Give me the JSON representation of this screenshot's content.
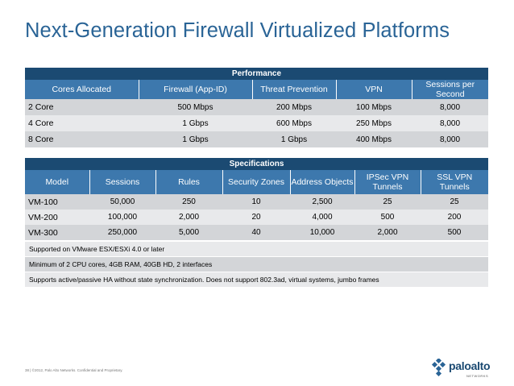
{
  "slide": {
    "title": "Next-Generation Firewall Virtualized Platforms",
    "footer": "38 | ©2012, Palo Alto Networks. Confidential and Proprietary.",
    "logo": {
      "text": "paloalto",
      "sub": "NETWORKS"
    }
  },
  "performance": {
    "heading": "Performance",
    "columns": [
      "Cores Allocated",
      "Firewall (App-ID)",
      "Threat Prevention",
      "VPN",
      "Sessions per Second"
    ],
    "rows": [
      [
        "2 Core",
        "500 Mbps",
        "200 Mbps",
        "100 Mbps",
        "8,000"
      ],
      [
        "4 Core",
        "1 Gbps",
        "600 Mbps",
        "250 Mbps",
        "8,000"
      ],
      [
        "8 Core",
        "1 Gbps",
        "1 Gbps",
        "400 Mbps",
        "8,000"
      ]
    ]
  },
  "specifications": {
    "heading": "Specifications",
    "columns": [
      "Model",
      "Sessions",
      "Rules",
      "Security Zones",
      "Address Objects",
      "IPSec VPN Tunnels",
      "SSL VPN Tunnels"
    ],
    "rows": [
      [
        "VM-100",
        "50,000",
        "250",
        "10",
        "2,500",
        "25",
        "25"
      ],
      [
        "VM-200",
        "100,000",
        "2,000",
        "20",
        "4,000",
        "500",
        "200"
      ],
      [
        "VM-300",
        "250,000",
        "5,000",
        "40",
        "10,000",
        "2,000",
        "500"
      ]
    ],
    "notes": [
      "Supported on VMware ESX/ESXi 4.0 or later",
      "Minimum of 2 CPU cores, 4GB RAM, 40GB HD, 2 interfaces",
      "Supports active/passive HA without state synchronization. Does not support 802.3ad, virtual systems, jumbo frames"
    ]
  }
}
